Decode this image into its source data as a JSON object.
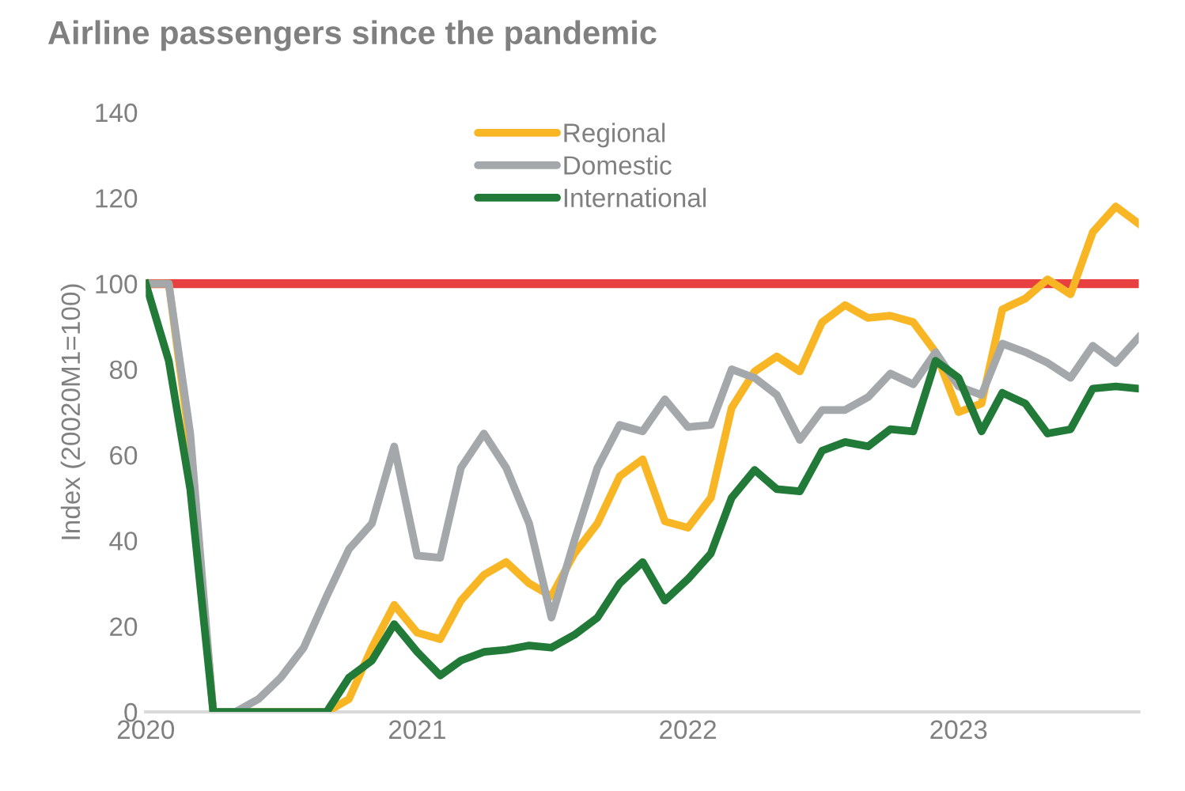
{
  "chart_data": {
    "type": "line",
    "title": "Airline passengers since the pandemic",
    "ylabel": "Index (20020M1=100)",
    "x": [
      "2020-01",
      "2020-02",
      "2020-03",
      "2020-04",
      "2020-05",
      "2020-06",
      "2020-07",
      "2020-08",
      "2020-09",
      "2020-10",
      "2020-11",
      "2020-12",
      "2021-01",
      "2021-02",
      "2021-03",
      "2021-04",
      "2021-05",
      "2021-06",
      "2021-07",
      "2021-08",
      "2021-09",
      "2021-10",
      "2021-11",
      "2021-12",
      "2022-01",
      "2022-02",
      "2022-03",
      "2022-04",
      "2022-05",
      "2022-06",
      "2022-07",
      "2022-08",
      "2022-09",
      "2022-10",
      "2022-11",
      "2022-12",
      "2023-01",
      "2023-02",
      "2023-03",
      "2023-04",
      "2023-05",
      "2023-06",
      "2023-07",
      "2023-08",
      "2023-09"
    ],
    "series": [
      {
        "name": "Regional",
        "color": "#f9b624",
        "values": [
          100,
          100,
          62,
          0,
          0,
          0,
          0,
          0,
          0,
          3,
          15,
          25,
          18.5,
          17,
          26,
          32,
          35,
          30,
          27,
          37,
          44,
          55,
          59,
          44.5,
          43,
          50,
          71,
          79.5,
          83,
          79.5,
          91,
          95,
          92,
          92.5,
          91,
          84,
          70,
          72,
          94,
          96.5,
          101,
          97.5,
          112,
          118,
          114
        ]
      },
      {
        "name": "Domestic",
        "color": "#a5a8aa",
        "values": [
          100,
          100,
          65,
          0,
          0,
          3,
          8,
          15,
          27,
          38,
          44,
          62,
          36.5,
          36,
          57,
          65,
          57,
          44,
          22,
          40,
          57,
          67,
          65.5,
          73,
          66.5,
          67,
          80,
          78,
          74,
          63.5,
          70.5,
          70.5,
          73.5,
          79,
          76.5,
          84,
          76,
          74,
          86,
          84,
          81.5,
          78,
          85.5,
          81.5,
          87.5
        ]
      },
      {
        "name": "International",
        "color": "#227a38",
        "values": [
          100,
          82,
          52,
          0,
          0,
          0,
          0,
          0,
          0,
          8,
          12,
          20.5,
          14,
          8.5,
          12,
          14,
          14.5,
          15.5,
          15,
          18,
          22,
          30,
          35,
          26,
          31,
          37,
          50,
          56.5,
          52,
          51.5,
          61,
          63,
          62,
          66,
          65.5,
          82,
          78,
          65.5,
          74.5,
          72,
          65,
          66,
          75.5,
          76,
          75.5
        ]
      }
    ],
    "xlim": [
      "2020-01",
      "2023-09"
    ],
    "xticks": [
      "2020",
      "2021",
      "2022",
      "2023"
    ],
    "ylim": [
      0,
      140
    ],
    "yticks": [
      0,
      20,
      40,
      60,
      80,
      100,
      120,
      140
    ],
    "ref_lines": [
      {
        "axis": "y",
        "value": 100,
        "color": "#e84040"
      }
    ],
    "legend": "top",
    "grid": false,
    "marker": "none",
    "line_style": "solid"
  }
}
